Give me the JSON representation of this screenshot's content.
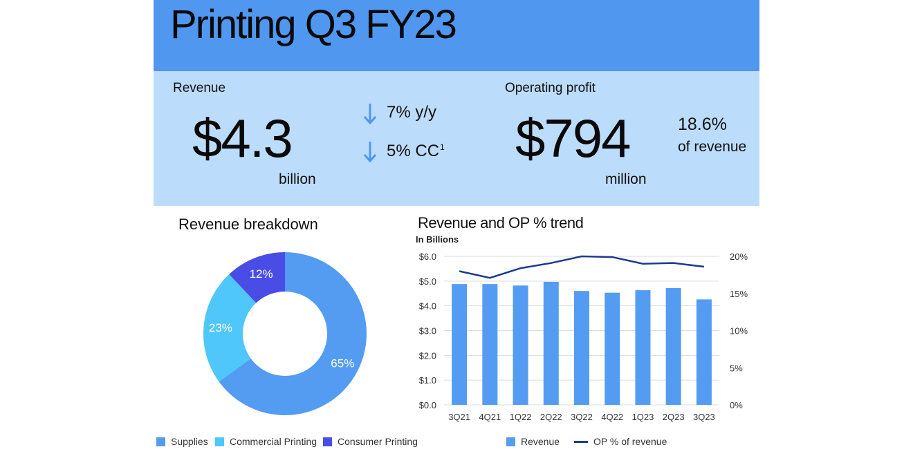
{
  "header": {
    "title": "Printing Q3 FY23"
  },
  "kpis": {
    "revenue": {
      "label": "Revenue",
      "value": "$4.3",
      "unit": "billion"
    },
    "changes": [
      {
        "direction": "down",
        "text": "7% y/y",
        "sup": ""
      },
      {
        "direction": "down",
        "text": "5% CC",
        "sup": "1"
      }
    ],
    "operating_profit": {
      "label": "Operating profit",
      "value": "$794",
      "unit": "million",
      "margin_pct": "18.6%",
      "margin_text": "of revenue"
    }
  },
  "colors": {
    "header": "#4f97ef",
    "kpi_bg": "#bcdcfb",
    "supplies": "#549cf2",
    "commercial": "#50c7fb",
    "consumer": "#4a4ce6",
    "bar": "#549cf2",
    "line": "#1a3a8f"
  },
  "icons": {
    "down_arrow": "arrow-down-icon"
  },
  "chart_data": [
    {
      "type": "pie",
      "title": "Revenue breakdown",
      "slices": [
        {
          "name": "Supplies",
          "value": 65,
          "label": "65%",
          "color": "#549cf2"
        },
        {
          "name": "Commercial Printing",
          "value": 23,
          "label": "23%",
          "color": "#50c7fb"
        },
        {
          "name": "Consumer Printing",
          "value": 12,
          "label": "12%",
          "color": "#4a4ce6"
        }
      ],
      "donut": true,
      "legend_position": "bottom"
    },
    {
      "type": "bar",
      "title": "Revenue and OP % trend",
      "subtitle": "In Billions",
      "categories": [
        "3Q21",
        "4Q21",
        "1Q22",
        "2Q22",
        "3Q22",
        "4Q22",
        "1Q23",
        "2Q23",
        "3Q23"
      ],
      "series": [
        {
          "name": "Revenue",
          "type": "bar",
          "axis": "left",
          "values": [
            4.88,
            4.88,
            4.82,
            4.97,
            4.6,
            4.53,
            4.63,
            4.72,
            4.26
          ],
          "color": "#549cf2"
        },
        {
          "name": "OP % of revenue",
          "type": "line",
          "axis": "right",
          "values": [
            18.0,
            17.1,
            18.4,
            19.1,
            20.0,
            19.9,
            19.0,
            19.1,
            18.6
          ],
          "color": "#1a3a8f"
        }
      ],
      "y_left": {
        "range": [
          0,
          6
        ],
        "ticks": [
          "$0.0",
          "$1.0",
          "$2.0",
          "$3.0",
          "$4.0",
          "$5.0",
          "$6.0"
        ]
      },
      "y_right": {
        "range": [
          0,
          20
        ],
        "ticks": [
          "0%",
          "5%",
          "10%",
          "15%",
          "20%"
        ]
      },
      "grid": true,
      "legend_position": "bottom"
    }
  ]
}
